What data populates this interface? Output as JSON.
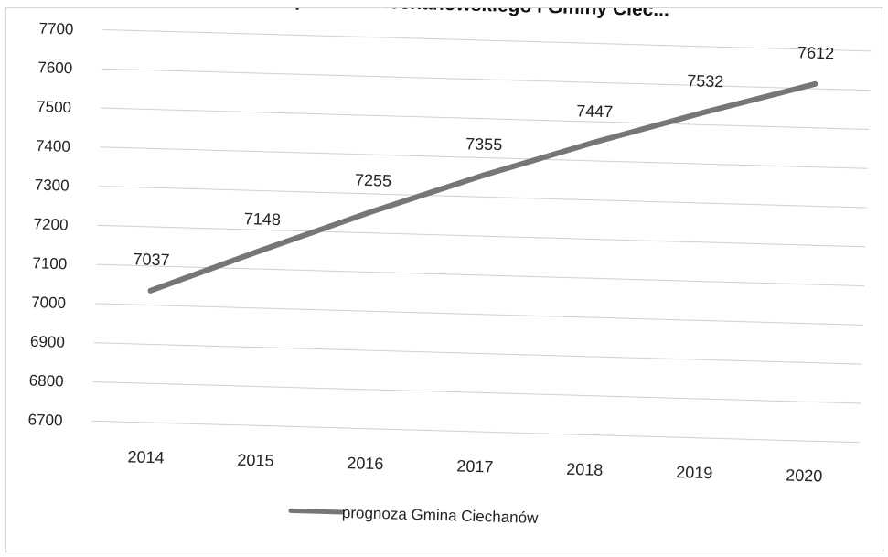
{
  "chart_data": {
    "type": "line",
    "title": "... powiatu ciechanowskiego i Gminy Ciec...",
    "categories": [
      "2014",
      "2015",
      "2016",
      "2017",
      "2018",
      "2019",
      "2020"
    ],
    "series": [
      {
        "name": "prognoza Gmina Ciechanów",
        "values": [
          7037,
          7148,
          7255,
          7355,
          7447,
          7532,
          7612
        ],
        "color": "#767676"
      }
    ],
    "y_ticks": [
      7700,
      7600,
      7500,
      7400,
      7300,
      7200,
      7100,
      7000,
      6900,
      6800,
      6700
    ],
    "ylim": [
      6700,
      7700
    ],
    "grid": true,
    "legend_position": "bottom",
    "data_labels": true
  }
}
